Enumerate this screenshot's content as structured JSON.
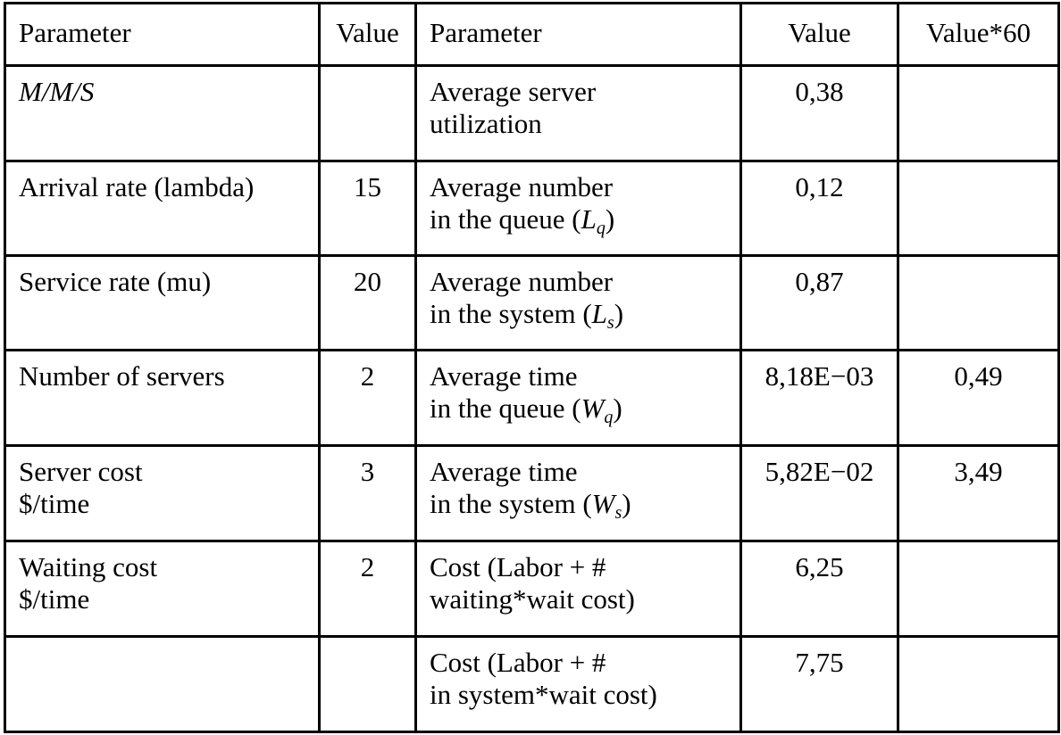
{
  "headers": [
    "Parameter",
    "Value",
    "Parameter",
    "Value",
    "Value*60"
  ],
  "rows": [
    {
      "param": "M/M/S",
      "value": "",
      "out_param_line1": "Average server",
      "out_param_line2": "utilization",
      "out_value": "0,38",
      "out_value60": ""
    },
    {
      "param": "Arrival rate (lambda)",
      "value": "15",
      "out_param_line1": "Average number",
      "out_param_line2": "in the queue (",
      "out_param_symbol": "L",
      "out_param_sub": "q",
      "out_param_close": ")",
      "out_value": "0,12",
      "out_value60": ""
    },
    {
      "param": "Service rate (mu)",
      "value": "20",
      "out_param_line1": "Average number",
      "out_param_line2": "in the system (",
      "out_param_symbol": "L",
      "out_param_sub": "s",
      "out_param_close": ")",
      "out_value": "0,87",
      "out_value60": ""
    },
    {
      "param": "Number of servers",
      "value": "2",
      "out_param_line1": "Average time",
      "out_param_line2": "in the queue (",
      "out_param_symbol": "W",
      "out_param_sub": "q",
      "out_param_close": ")",
      "out_value": "8,18E−03",
      "out_value60": "0,49"
    },
    {
      "param_line1": "Server cost",
      "param_line2": "$/time",
      "value": "3",
      "out_param_line1": "Average time",
      "out_param_line2": "in the system (",
      "out_param_symbol": "W",
      "out_param_sub": "s",
      "out_param_close": ")",
      "out_value": "5,82E−02",
      "out_value60": "3,49"
    },
    {
      "param_line1": "Waiting cost",
      "param_line2": "$/time",
      "value": "2",
      "out_param_line1": "Cost (Labor + #",
      "out_param_line2": "waiting*wait cost)",
      "out_value": "6,25",
      "out_value60": ""
    },
    {
      "param": "",
      "value": "",
      "out_param_line1": "Cost (Labor + #",
      "out_param_line2": "in system*wait cost)",
      "out_value": "7,75",
      "out_value60": ""
    }
  ]
}
